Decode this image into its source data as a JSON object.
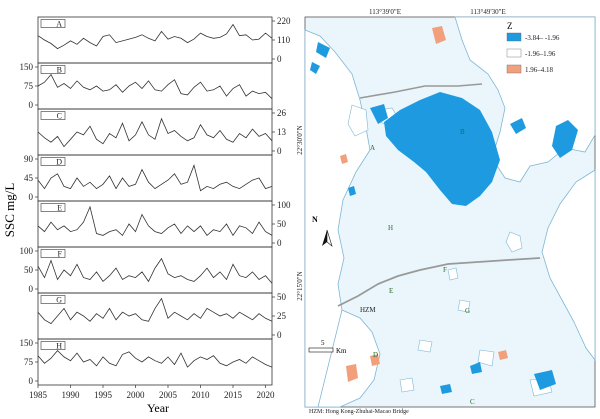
{
  "chart_data": [
    {
      "type": "line",
      "ylabel": "SSC mg/L",
      "xlabel": "Year",
      "x_ticks": [
        "1985",
        "1990",
        "1995",
        "2000",
        "2005",
        "2010",
        "2015",
        "2020"
      ],
      "xlim": [
        1985,
        2021
      ],
      "panels": [
        {
          "name": "A",
          "axis_side": "right",
          "ticks": [
            "220",
            "110",
            "0"
          ],
          "ylim": [
            0,
            220
          ],
          "values": [
            135,
            110,
            90,
            60,
            80,
            105,
            85,
            120,
            95,
            75,
            130,
            140,
            95,
            105,
            115,
            125,
            140,
            120,
            105,
            160,
            115,
            130,
            120,
            95,
            115,
            150,
            130,
            120,
            125,
            145,
            200,
            135,
            140,
            110,
            115,
            150,
            120
          ]
        },
        {
          "name": "B",
          "axis_side": "left",
          "ticks": [
            "150",
            "75",
            "0"
          ],
          "ylim": [
            0,
            150
          ],
          "values": [
            75,
            90,
            120,
            70,
            85,
            65,
            95,
            70,
            60,
            75,
            55,
            60,
            80,
            50,
            75,
            90,
            65,
            95,
            60,
            55,
            80,
            100,
            45,
            40,
            70,
            90,
            55,
            60,
            75,
            35,
            65,
            80,
            35,
            55,
            45,
            50,
            25
          ]
        },
        {
          "name": "C",
          "axis_side": "right",
          "ticks": [
            "26",
            "13",
            "0"
          ],
          "ylim": [
            0,
            26
          ],
          "values": [
            13,
            9,
            6,
            10,
            3,
            8,
            13,
            11,
            17,
            8,
            5,
            12,
            9,
            19,
            7,
            11,
            20,
            11,
            8,
            22,
            12,
            14,
            10,
            7,
            9,
            18,
            11,
            9,
            14,
            8,
            6,
            12,
            9,
            15,
            10,
            12,
            7
          ]
        },
        {
          "name": "D",
          "axis_side": "left",
          "ticks": [
            "90",
            "45",
            "0"
          ],
          "ylim": [
            0,
            90
          ],
          "values": [
            40,
            20,
            45,
            55,
            25,
            20,
            45,
            25,
            35,
            20,
            30,
            50,
            20,
            45,
            25,
            30,
            65,
            35,
            20,
            30,
            40,
            55,
            30,
            35,
            75,
            15,
            25,
            20,
            30,
            35,
            25,
            20,
            30,
            40,
            45,
            20,
            25
          ]
        },
        {
          "name": "E",
          "axis_side": "right",
          "ticks": [
            "100",
            "50",
            "0"
          ],
          "ylim": [
            0,
            100
          ],
          "values": [
            45,
            30,
            55,
            35,
            45,
            30,
            35,
            55,
            95,
            25,
            20,
            30,
            35,
            20,
            50,
            30,
            75,
            45,
            30,
            25,
            40,
            50,
            25,
            45,
            30,
            45,
            20,
            35,
            30,
            50,
            20,
            45,
            40,
            25,
            55,
            30,
            20
          ]
        },
        {
          "name": "F",
          "axis_side": "left",
          "ticks": [
            "100",
            "50",
            "0"
          ],
          "ylim": [
            0,
            100
          ],
          "values": [
            60,
            30,
            75,
            25,
            50,
            35,
            65,
            30,
            25,
            45,
            20,
            35,
            55,
            25,
            35,
            30,
            45,
            20,
            55,
            80,
            40,
            30,
            35,
            25,
            20,
            35,
            55,
            30,
            45,
            25,
            65,
            35,
            30,
            45,
            25,
            35,
            15
          ]
        },
        {
          "name": "G",
          "axis_side": "right",
          "ticks": [
            "50",
            "25",
            "0"
          ],
          "ylim": [
            0,
            50
          ],
          "values": [
            30,
            20,
            15,
            25,
            35,
            20,
            30,
            25,
            18,
            28,
            22,
            35,
            20,
            30,
            25,
            28,
            20,
            18,
            35,
            48,
            22,
            30,
            25,
            20,
            28,
            22,
            35,
            30,
            25,
            28,
            22,
            30,
            25,
            20,
            28,
            22,
            18
          ]
        },
        {
          "name": "H",
          "axis_side": "left",
          "ticks": [
            "150",
            "75",
            "0"
          ],
          "ylim": [
            0,
            150
          ],
          "values": [
            100,
            70,
            90,
            120,
            95,
            80,
            110,
            75,
            85,
            60,
            95,
            70,
            60,
            105,
            115,
            90,
            75,
            95,
            80,
            70,
            95,
            65,
            110,
            55,
            80,
            95,
            85,
            100,
            70,
            60,
            75,
            85,
            70,
            95,
            80,
            65,
            55
          ]
        }
      ]
    },
    {
      "type": "map",
      "lon_labels": [
        "113°39'0\"E",
        "113°49'30\"E"
      ],
      "lat_labels": [
        "22°30'0\"N",
        "22°15'0\"N"
      ],
      "legend": {
        "title": "Z",
        "items": [
          {
            "label": "-3.84– -1.96",
            "color": "#1e9be0"
          },
          {
            "label": "-1.96–1.96",
            "color": "#ffffff"
          },
          {
            "label": "1.96–4.18",
            "color": "#f2a07c"
          }
        ]
      },
      "site_labels": [
        "A",
        "B",
        "C",
        "D",
        "E",
        "F",
        "G",
        "H"
      ],
      "hzm_label": "HZM",
      "scale_bar": {
        "number": "5",
        "unit": "Km"
      },
      "north_label": "N",
      "caption": "HZM: Hong Kong-Zhuhai-Macao Bridge",
      "water_color": "#eaf6fc",
      "land_outline_color": "#7fb6d4"
    }
  ]
}
